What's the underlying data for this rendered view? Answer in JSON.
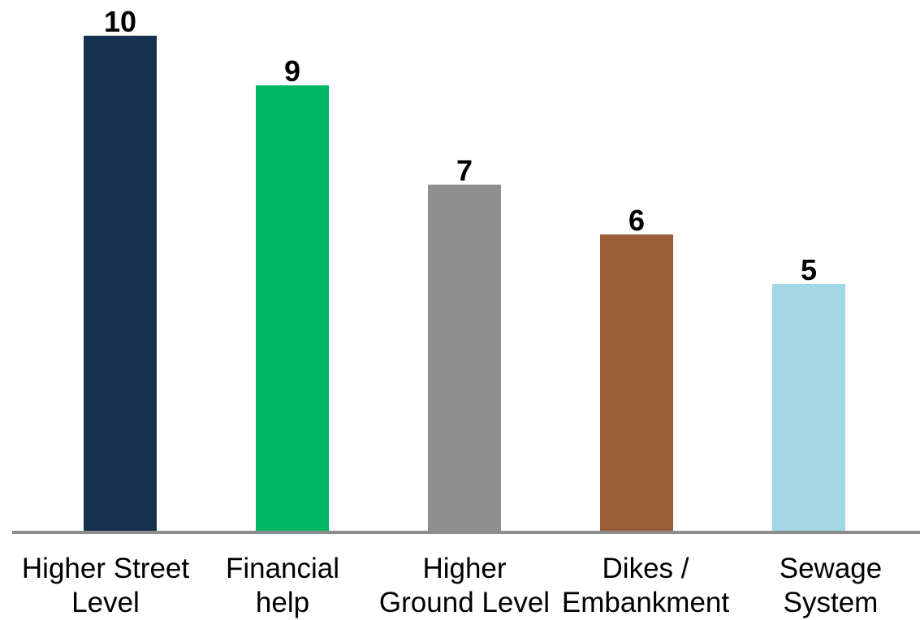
{
  "chart_data": {
    "type": "bar",
    "categories": [
      [
        "Higher Street",
        "Level"
      ],
      [
        "Financial",
        "help"
      ],
      [
        "Higher",
        "Ground Level"
      ],
      [
        "Dikes /",
        "Embankment"
      ],
      [
        "Sewage",
        "System"
      ]
    ],
    "values": [
      10,
      9,
      7,
      6,
      5
    ],
    "colors": [
      "#17324f",
      "#00b764",
      "#8f8f8f",
      "#9a5f36",
      "#a3d7e5"
    ],
    "axis_color": "#8c8c8c",
    "ylim": [
      0,
      10
    ],
    "grid": false,
    "legend": "none",
    "title": "",
    "xlabel": "",
    "ylabel": ""
  }
}
